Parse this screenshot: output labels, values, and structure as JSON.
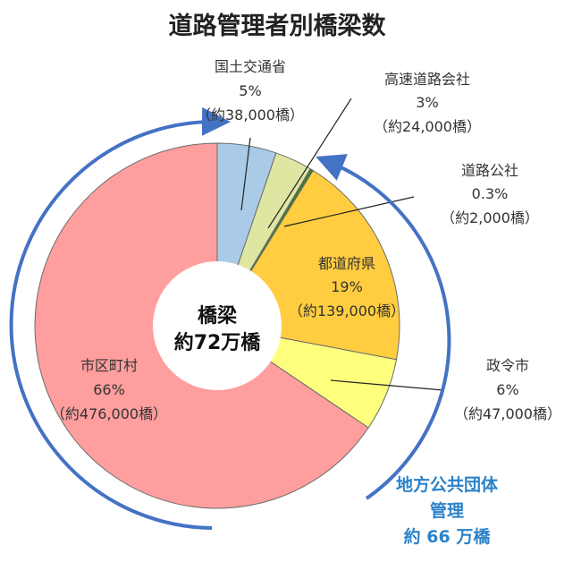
{
  "chart_data": {
    "type": "pie",
    "title": "道路管理者別橋梁数",
    "center_label": [
      "橋梁",
      "約72万橋"
    ],
    "slices": [
      {
        "name": "国土交通省",
        "percent_label": "5%",
        "count_label": "（約38,000橋）",
        "value": 38000,
        "color": "#a9cbe8"
      },
      {
        "name": "高速道路会社",
        "percent_label": "3%",
        "count_label": "（約24,000橋）",
        "value": 24000,
        "color": "#dfe6a2"
      },
      {
        "name": "道路公社",
        "percent_label": "0.3%",
        "count_label": "（約2,000橋）",
        "value": 2000,
        "color": "#3f7a33"
      },
      {
        "name": "都道府県",
        "percent_label": "19%",
        "count_label": "（約139,000橋）",
        "value": 139000,
        "color": "#ffcd3f"
      },
      {
        "name": "政令市",
        "percent_label": "6%",
        "count_label": "（約47,000橋）",
        "value": 47000,
        "color": "#ffff7e"
      },
      {
        "name": "市区町村",
        "percent_label": "66%",
        "count_label": "（約476,000橋）",
        "value": 476000,
        "color": "#ff9e9e"
      }
    ],
    "annotation": [
      "地方公共団体",
      "管理",
      "約 66 万橋"
    ]
  }
}
